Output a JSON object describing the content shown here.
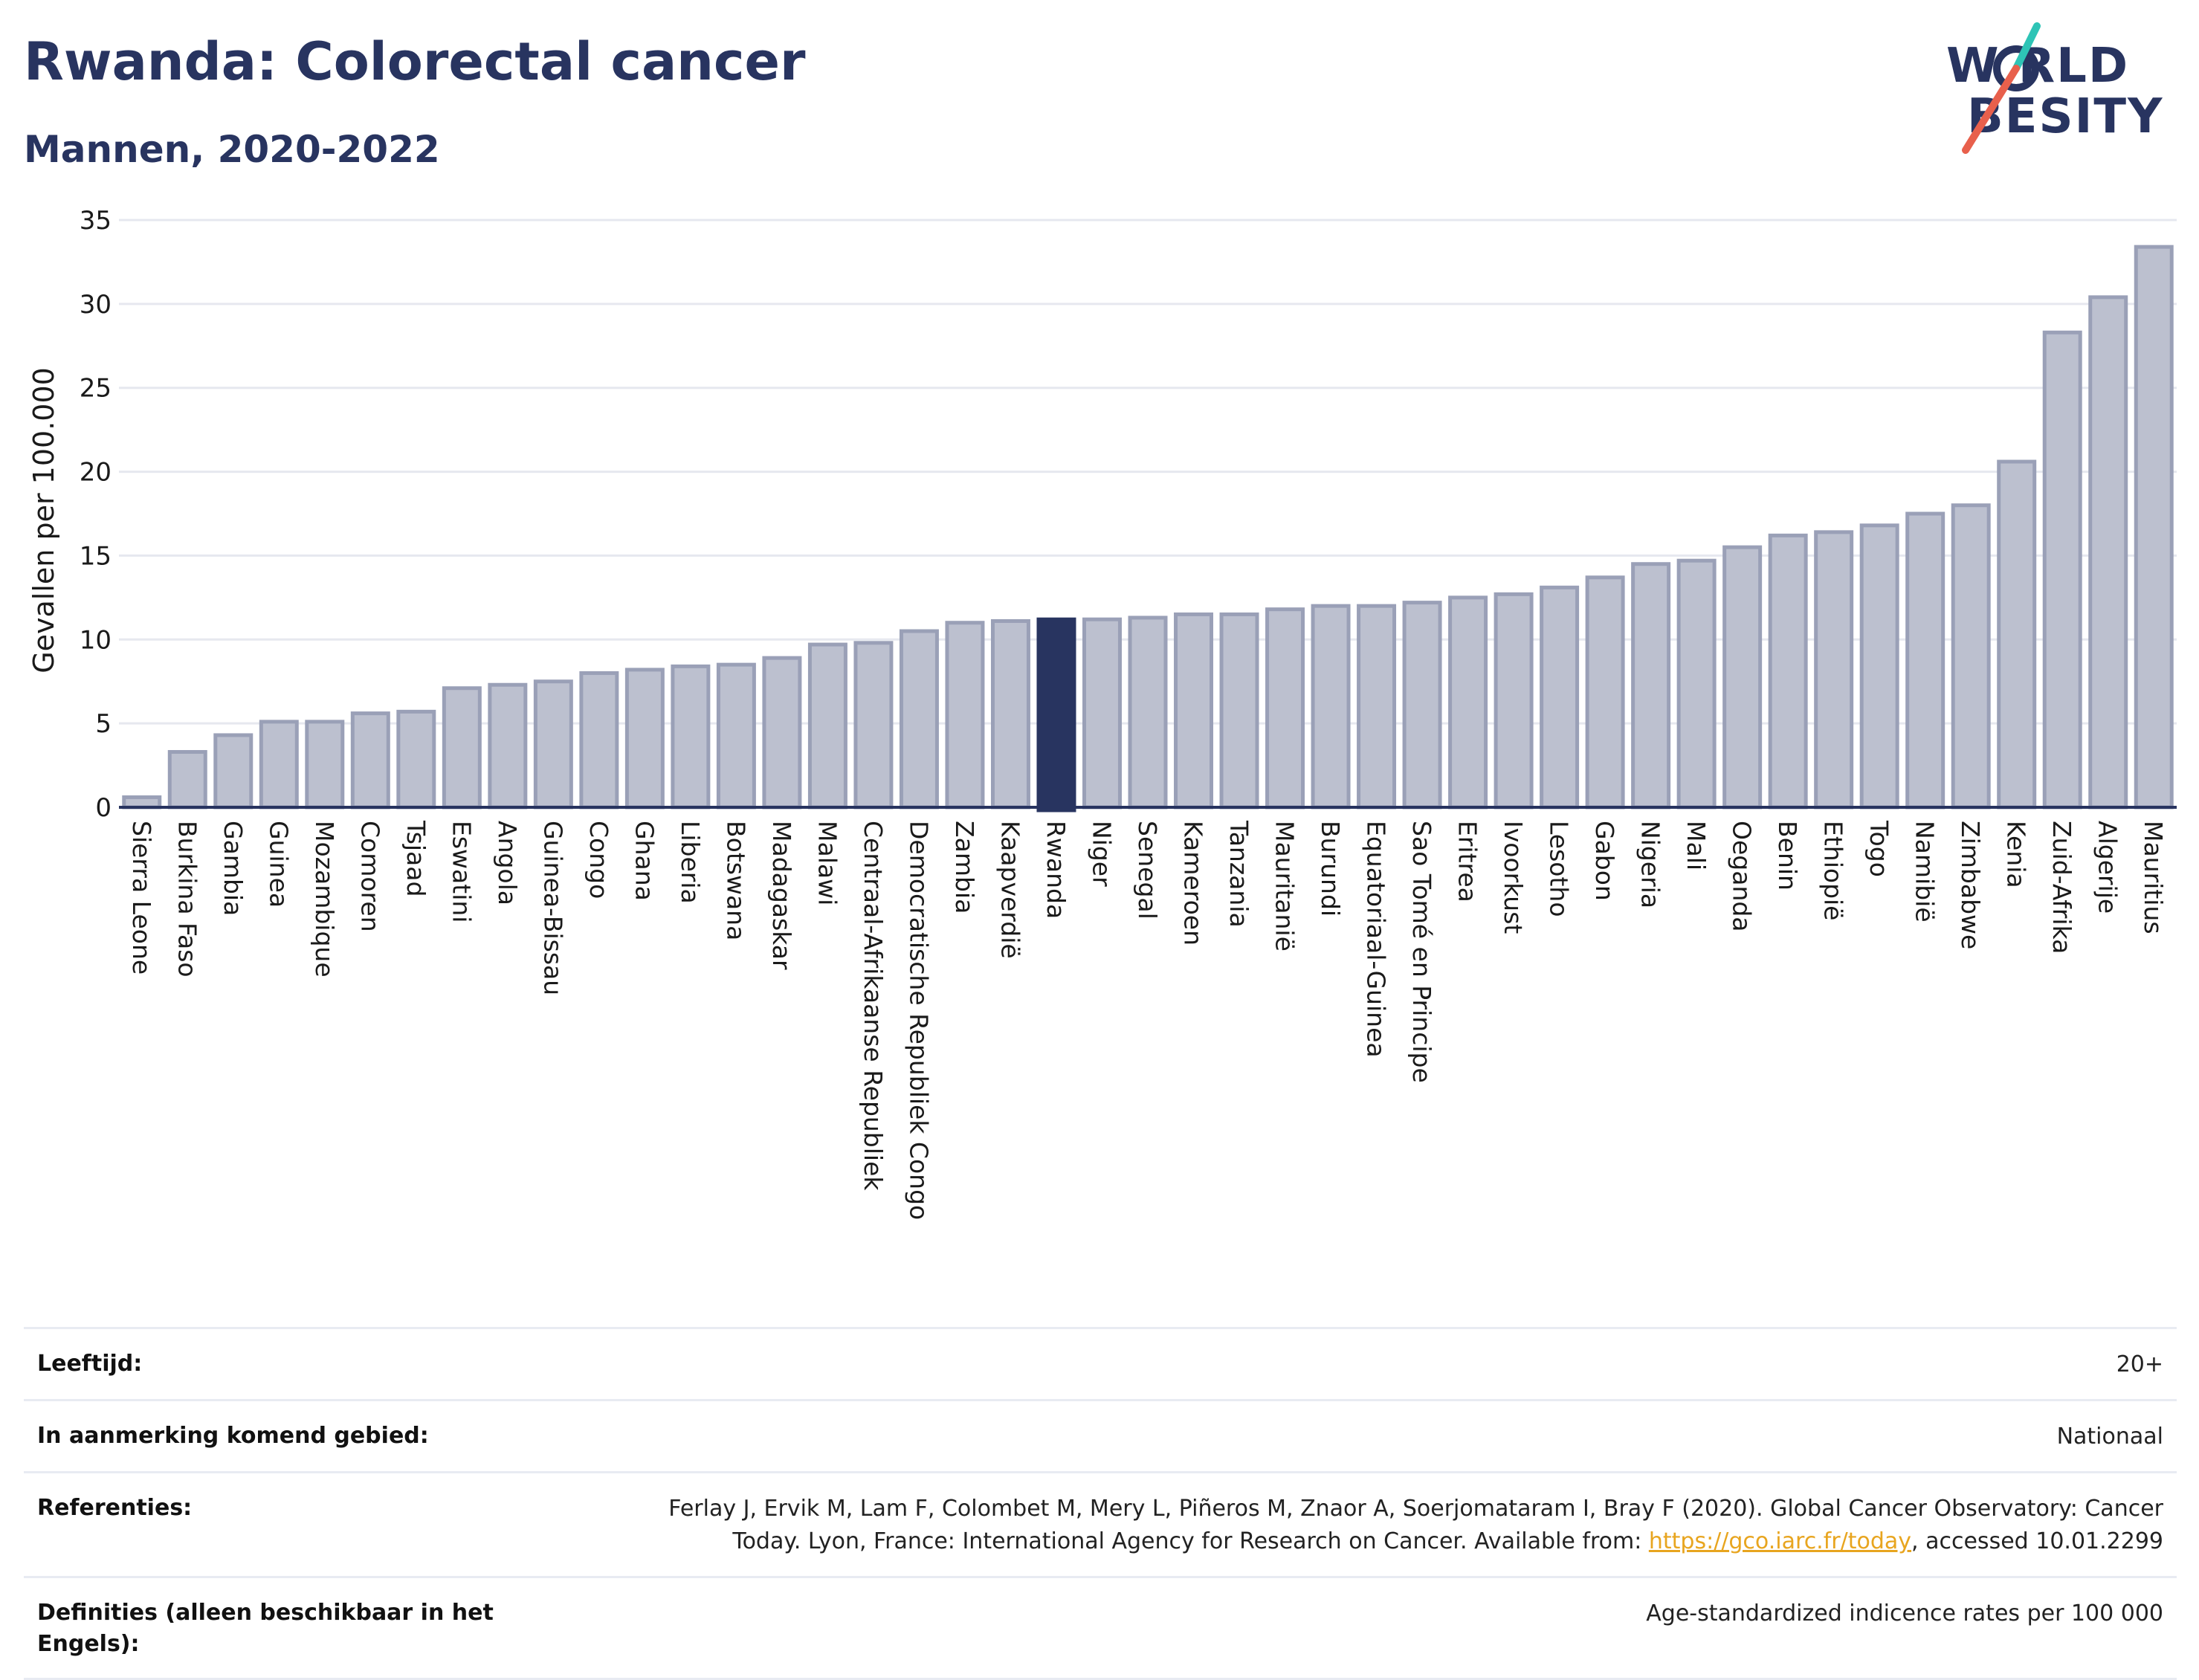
{
  "header": {
    "title": "Rwanda: Colorectal cancer",
    "subtitle": "Mannen, 2020-2022"
  },
  "logo": {
    "line1": "W RLD",
    "line2": "BESITY",
    "accent_colors": [
      "#2ec4b6",
      "#e8604c"
    ]
  },
  "colors": {
    "bar_default": "#bcc0cf",
    "bar_border": "#9aa0b7",
    "bar_highlight": "#283460",
    "grid": "#e6e8ef",
    "axis": "#283460"
  },
  "chart_data": {
    "type": "bar",
    "ylabel": "Gevallen per 100.000",
    "ylim": [
      0,
      35
    ],
    "yticks": [
      0,
      5,
      10,
      15,
      20,
      25,
      30,
      35
    ],
    "highlight": "Rwanda",
    "categories": [
      "Sierra Leone",
      "Burkina Faso",
      "Gambia",
      "Guinea",
      "Mozambique",
      "Comoren",
      "Tsjaad",
      "Eswatini",
      "Angola",
      "Guinea-Bissau",
      "Congo",
      "Ghana",
      "Liberia",
      "Botswana",
      "Madagaskar",
      "Malawi",
      "Centraal-Afrikaanse Republiek",
      "Democratische Republiek Congo",
      "Zambia",
      "Kaapverdië",
      "Rwanda",
      "Niger",
      "Senegal",
      "Kameroen",
      "Tanzania",
      "Mauritanië",
      "Burundi",
      "Equatoriaal-Guinea",
      "Sao Tomé en Principe",
      "Eritrea",
      "Ivoorkust",
      "Lesotho",
      "Gabon",
      "Nigeria",
      "Mali",
      "Oeganda",
      "Benin",
      "Ethiopië",
      "Togo",
      "Namibië",
      "Zimbabwe",
      "Kenia",
      "Zuid-Afrika",
      "Algerije",
      "Mauritius"
    ],
    "values": [
      0.6,
      3.3,
      4.3,
      5.1,
      5.1,
      5.6,
      5.7,
      7.1,
      7.3,
      7.5,
      8.0,
      8.2,
      8.4,
      8.5,
      8.9,
      9.7,
      9.8,
      10.5,
      11.0,
      11.1,
      11.2,
      11.2,
      11.3,
      11.5,
      11.5,
      11.8,
      12.0,
      12.0,
      12.2,
      12.5,
      12.7,
      13.1,
      13.7,
      14.5,
      14.7,
      15.5,
      16.2,
      16.4,
      16.8,
      17.5,
      18.0,
      20.6,
      28.3,
      30.4,
      33.4
    ]
  },
  "meta": {
    "rows": [
      {
        "label": "Leeftijd:",
        "value": "20+"
      },
      {
        "label": "In aanmerking komend gebied:",
        "value": "Nationaal"
      },
      {
        "label": "Referenties:",
        "value_line1": "Ferlay J, Ervik M, Lam F, Colombet M, Mery L, Piñeros M, Znaor A, Soerjomataram I, Bray F (2020). Global Cancer Observatory: Cancer",
        "value_line2_pre": "Today. Lyon, France: International Agency for Research on Cancer. Available from: ",
        "link": "https://gco.iarc.fr/today",
        "value_line2_post": ", accessed 10.01.2299"
      },
      {
        "label": "Definities (alleen beschikbaar in het Engels):",
        "value": "Age-standardized indicence rates per 100 000"
      }
    ]
  }
}
